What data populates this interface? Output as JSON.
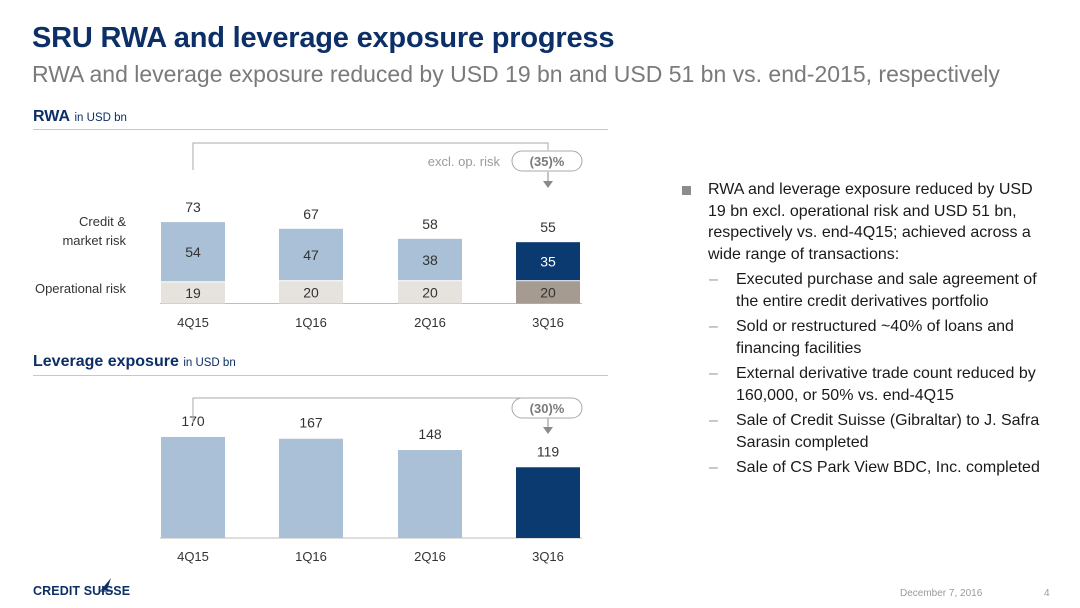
{
  "title": "SRU RWA and leverage exposure progress",
  "subtitle": "RWA and leverage exposure reduced by USD 19 bn and USD 51 bn vs. end-2015, respectively",
  "rwa_section": {
    "title": "RWA",
    "unit": "in USD bn"
  },
  "leverage_section": {
    "title": "Leverage exposure",
    "unit": "in USD bn"
  },
  "colors": {
    "light_blue": "#a9c0d6",
    "dark_blue": "#0b3a70",
    "light_grey": "#e6e3df",
    "dark_grey": "#a59b91",
    "heading": "#0b2f66"
  },
  "chart_data": [
    {
      "type": "bar",
      "stacked": true,
      "title": "RWA",
      "unit": "in USD bn",
      "categories": [
        "4Q15",
        "1Q16",
        "2Q16",
        "3Q16"
      ],
      "series": [
        {
          "name": "Operational risk",
          "values": [
            19,
            20,
            20,
            20
          ]
        },
        {
          "name": "Credit & market risk",
          "values": [
            54,
            47,
            38,
            35
          ]
        }
      ],
      "totals": [
        73,
        67,
        58,
        55
      ],
      "annotation": {
        "label": "excl. op. risk",
        "change": "(35)%"
      }
    },
    {
      "type": "bar",
      "title": "Leverage exposure",
      "unit": "in USD bn",
      "categories": [
        "4Q15",
        "1Q16",
        "2Q16",
        "3Q16"
      ],
      "values": [
        170,
        167,
        148,
        119
      ],
      "annotation": {
        "change": "(30)%"
      }
    }
  ],
  "bullets": {
    "main": "RWA and leverage exposure reduced by USD 19 bn excl. operational risk and USD 51 bn, respectively vs. end-4Q15; achieved across a wide range of transactions:",
    "sub": [
      "Executed purchase and sale agreement of the entire credit derivatives portfolio",
      "Sold or restructured ~40% of loans and financing facilities",
      "External derivative trade count reduced by 160,000, or 50% vs. end-4Q15",
      "Sale of Credit Suisse (Gibraltar) to J. Safra Sarasin completed",
      "Sale of CS Park View BDC, Inc. completed"
    ]
  },
  "footer": {
    "logo": "CREDIT SUISSE",
    "date": "December 7, 2016",
    "page": "4"
  }
}
